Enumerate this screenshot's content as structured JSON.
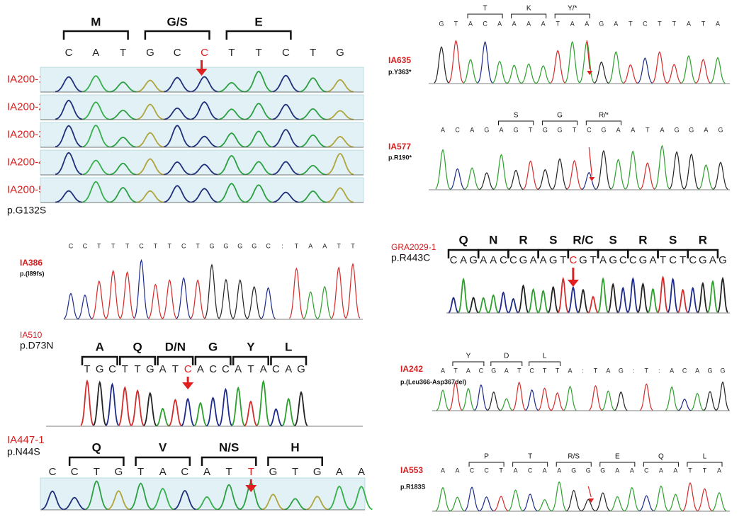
{
  "panels": [
    {
      "label": "IA200-1",
      "rows": [
        "IA200-1",
        "IA200-2",
        "IA200-3",
        "IA200-4",
        "IA200-5"
      ],
      "mutation": "p.G132S",
      "codons": [
        "M",
        "G/S",
        "E"
      ],
      "bases": [
        "C",
        "A",
        "T",
        "G",
        "C",
        "C",
        "T",
        "T",
        "C",
        "T",
        "G"
      ],
      "highlight": 5
    },
    {
      "label": "IA386",
      "mutation": "p.(I89fs)",
      "bases": [
        "C",
        "C",
        "T",
        "T",
        "T",
        "C",
        "T",
        "T",
        "C",
        "T",
        "G",
        "G",
        "G",
        "G",
        "C",
        ":",
        "T",
        "A",
        "A",
        "T",
        "T"
      ]
    },
    {
      "label": "IA510",
      "mutation": "p.D73N",
      "codons": [
        "A",
        "Q",
        "D/N",
        "G",
        "Y",
        "L"
      ],
      "bases": [
        "T",
        "G",
        "C",
        "T",
        "T",
        "G",
        "A",
        "T",
        "C",
        "A",
        "C",
        "C",
        "A",
        "T",
        "A",
        "C",
        "A",
        "G"
      ],
      "highlight": 8
    },
    {
      "label": "IA447-1",
      "mutation": "p.N44S",
      "codons": [
        "Q",
        "V",
        "N/S",
        "H"
      ],
      "bases": [
        "C",
        "C",
        "T",
        "G",
        "T",
        "A",
        "C",
        "A",
        "T",
        "T",
        "G",
        "T",
        "G",
        "A",
        "A"
      ],
      "highlight": 9
    },
    {
      "label": "IA635",
      "mutation": "p.Y363*",
      "codons": [
        "T",
        "K",
        "Y/*"
      ],
      "bases": [
        "G",
        "T",
        "A",
        "C",
        "A",
        "A",
        "A",
        "A",
        "T",
        "A",
        "A",
        "G",
        "A",
        "T",
        "C",
        "T",
        "T",
        "A",
        "T",
        "A"
      ]
    },
    {
      "label": "IA577",
      "mutation": "p.R190*",
      "codons": [
        "S",
        "G",
        "R/*"
      ],
      "bases": [
        "A",
        "C",
        "A",
        "G",
        "A",
        "G",
        "T",
        "G",
        "G",
        "T",
        "C",
        "G",
        "A",
        "A",
        "T",
        "A",
        "G",
        "G",
        "A",
        "G"
      ]
    },
    {
      "label": "GRA2029-1",
      "mutation": "p.R443C",
      "codons": [
        "Q",
        "N",
        "R",
        "S",
        "R/C",
        "S",
        "R",
        "S",
        "R"
      ],
      "bases": [
        "C",
        "A",
        "G",
        "A",
        "A",
        "C",
        "C",
        "G",
        "A",
        "A",
        "G",
        "T",
        "C",
        "G",
        "T",
        "A",
        "G",
        "C",
        "C",
        "G",
        "A",
        "T",
        "C",
        "T",
        "C",
        "G",
        "A",
        "G"
      ],
      "highlight": 12
    },
    {
      "label": "IA242",
      "mutation": "p.(Leu366-Asp367del)",
      "codons": [
        "Y",
        "D",
        "L"
      ],
      "bases": [
        "A",
        "T",
        "A",
        "C",
        "G",
        "A",
        "T",
        "C",
        "T",
        "T",
        "A",
        ":",
        "T",
        "A",
        "G",
        ":",
        "T",
        ":",
        "A",
        "C",
        "A",
        "G",
        "G"
      ]
    },
    {
      "label": "IA553",
      "mutation": "p.R183S",
      "codons": [
        "P",
        "T",
        "R/S",
        "E",
        "Q",
        "L"
      ],
      "bases": [
        "A",
        "A",
        "C",
        "C",
        "T",
        "A",
        "C",
        "A",
        "A",
        "G",
        "G",
        "G",
        "A",
        "A",
        "C",
        "A",
        "A",
        "T",
        "T",
        "A"
      ]
    }
  ]
}
